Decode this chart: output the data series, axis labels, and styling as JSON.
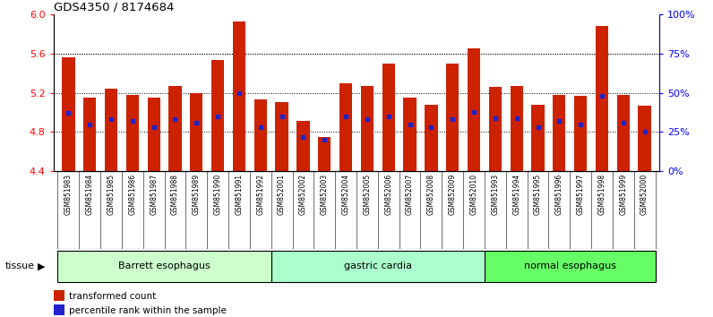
{
  "title": "GDS4350 / 8174684",
  "samples": [
    "GSM851983",
    "GSM851984",
    "GSM851985",
    "GSM851986",
    "GSM851987",
    "GSM851988",
    "GSM851989",
    "GSM851990",
    "GSM851991",
    "GSM851992",
    "GSM852001",
    "GSM852002",
    "GSM852003",
    "GSM852004",
    "GSM852005",
    "GSM852006",
    "GSM852007",
    "GSM852008",
    "GSM852009",
    "GSM852010",
    "GSM851993",
    "GSM851994",
    "GSM851995",
    "GSM851996",
    "GSM851997",
    "GSM851998",
    "GSM851999",
    "GSM852000"
  ],
  "red_values": [
    5.56,
    5.15,
    5.24,
    5.18,
    5.15,
    5.27,
    5.2,
    5.53,
    5.93,
    5.13,
    5.1,
    4.91,
    4.75,
    5.3,
    5.27,
    5.5,
    5.15,
    5.08,
    5.5,
    5.65,
    5.26,
    5.27,
    5.08,
    5.18,
    5.17,
    5.88,
    5.18,
    5.07
  ],
  "blue_values": [
    37,
    30,
    33,
    32,
    28,
    33,
    31,
    35,
    50,
    28,
    35,
    22,
    20,
    35,
    33,
    35,
    30,
    28,
    33,
    38,
    34,
    34,
    28,
    32,
    30,
    48,
    31,
    25
  ],
  "groups": [
    {
      "label": "Barrett esophagus",
      "start": 0,
      "end": 10
    },
    {
      "label": "gastric cardia",
      "start": 10,
      "end": 20
    },
    {
      "label": "normal esophagus",
      "start": 20,
      "end": 28
    }
  ],
  "group_colors": [
    "#ccffcc",
    "#aaffcc",
    "#66ff66"
  ],
  "ylim_left": [
    4.4,
    6.0
  ],
  "ylim_right": [
    0,
    100
  ],
  "yticks_left": [
    4.4,
    4.8,
    5.2,
    5.6,
    6.0
  ],
  "yticks_right": [
    0,
    25,
    50,
    75,
    100
  ],
  "bar_color": "#cc2200",
  "blue_color": "#2222cc",
  "bar_width": 0.6,
  "baseline": 4.4,
  "legend_label_red": "transformed count",
  "legend_label_blue": "percentile rank within the sample",
  "tissue_label": "tissue",
  "xtick_bg": "#cccccc"
}
